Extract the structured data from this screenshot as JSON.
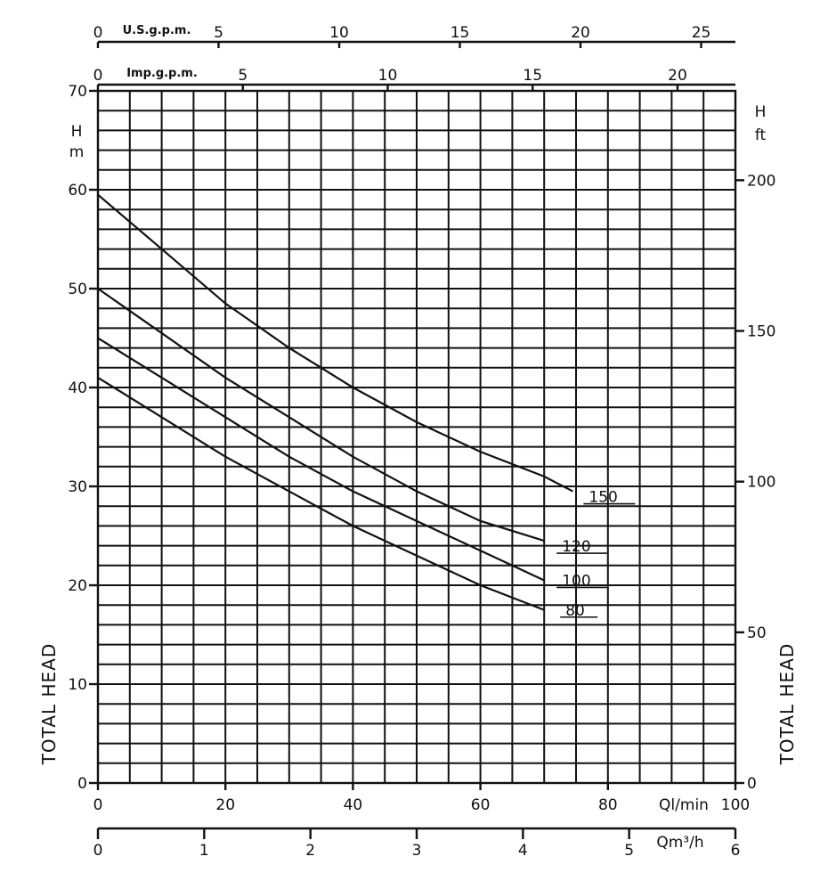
{
  "chart_data": {
    "type": "line",
    "xlabel": "Ql/min",
    "ylabel": "TOTAL HEAD",
    "y_unit": "H m",
    "xlim": [
      0,
      100
    ],
    "ylim": [
      0,
      70
    ],
    "grid": true,
    "series": [
      {
        "name": "150",
        "x": [
          0,
          10,
          20,
          30,
          40,
          50,
          60,
          70,
          74.5
        ],
        "y": [
          59.5,
          54,
          48.5,
          44,
          40,
          36.5,
          33.5,
          31,
          29.5
        ]
      },
      {
        "name": "120",
        "x": [
          0,
          10,
          20,
          30,
          40,
          50,
          60,
          70
        ],
        "y": [
          50,
          45.5,
          41,
          37,
          33,
          29.5,
          26.5,
          24.5
        ]
      },
      {
        "name": "100",
        "x": [
          0,
          10,
          20,
          30,
          40,
          50,
          60,
          70
        ],
        "y": [
          45,
          41,
          37,
          33,
          29.5,
          26.5,
          23.5,
          20.5
        ]
      },
      {
        "name": "80",
        "x": [
          0,
          10,
          20,
          30,
          40,
          50,
          60,
          70
        ],
        "y": [
          41,
          37,
          33,
          29.5,
          26,
          23,
          20,
          17.5
        ]
      }
    ],
    "axes": {
      "bottom_lpm": {
        "label": "Ql/min",
        "ticks": [
          "0",
          "20",
          "40",
          "60",
          "80",
          "100"
        ],
        "values": [
          0,
          20,
          40,
          60,
          80,
          100
        ]
      },
      "bottom_m3h": {
        "label": "Qm³/h",
        "ticks": [
          "0",
          "1",
          "2",
          "3",
          "4",
          "5",
          "6"
        ],
        "values": [
          0,
          1,
          2,
          3,
          4,
          5,
          6
        ]
      },
      "top_usgpm": {
        "label": "U.S.g.p.m.",
        "ticks": [
          "0",
          "5",
          "10",
          "15",
          "20",
          "25"
        ],
        "values": [
          0,
          5,
          10,
          15,
          20,
          25
        ]
      },
      "top_impgpm": {
        "label": "Imp.g.p.m.",
        "ticks": [
          "0",
          "5",
          "10",
          "15",
          "20"
        ],
        "values": [
          0,
          5,
          10,
          15,
          20
        ]
      },
      "left_m": {
        "label_line1": "H",
        "label_line2": "m",
        "ticks": [
          "0",
          "10",
          "20",
          "30",
          "40",
          "50",
          "60",
          "70"
        ],
        "values": [
          0,
          10,
          20,
          30,
          40,
          50,
          60,
          70
        ]
      },
      "right_ft": {
        "label_line1": "H",
        "label_line2": "ft",
        "ticks": [
          "0",
          "50",
          "100",
          "150",
          "200"
        ],
        "values": [
          0,
          50,
          100,
          150,
          200
        ]
      }
    },
    "side_labels": {
      "left": "TOTAL HEAD",
      "right": "TOTAL HEAD"
    }
  }
}
